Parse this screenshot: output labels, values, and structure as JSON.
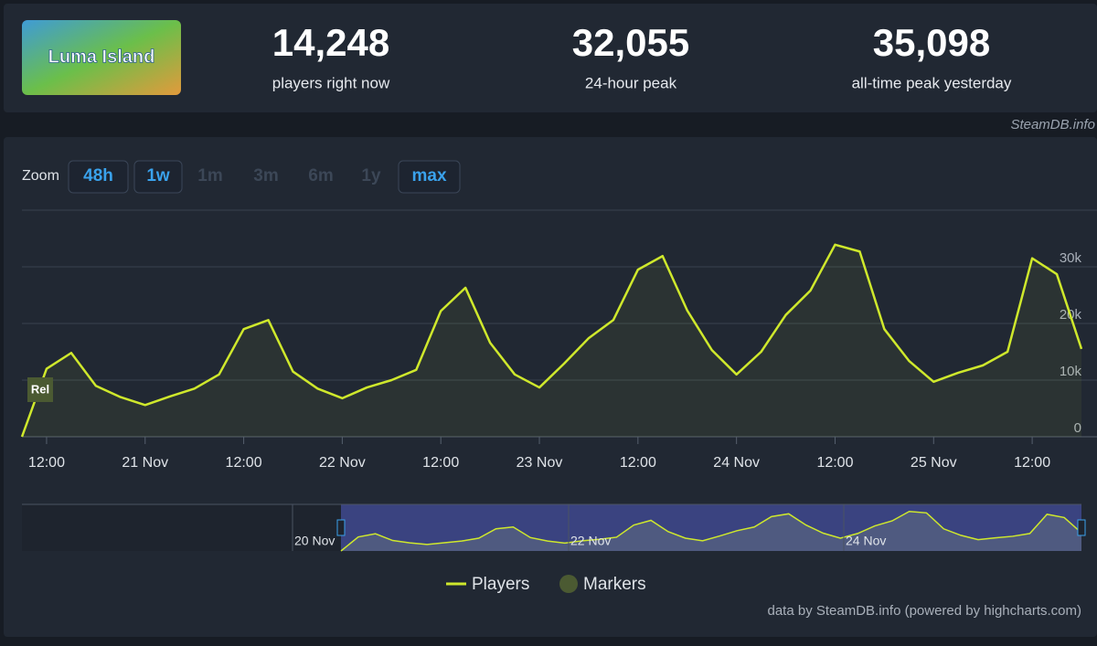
{
  "header": {
    "logo": "Luma Island",
    "stats": [
      {
        "value": "14,248",
        "label": "players right now"
      },
      {
        "value": "32,055",
        "label": "24-hour peak"
      },
      {
        "value": "35,098",
        "label": "all-time peak yesterday"
      }
    ],
    "credit": "SteamDB.info"
  },
  "zoom": {
    "label": "Zoom",
    "buttons": [
      {
        "label": "48h",
        "enabled": true
      },
      {
        "label": "1w",
        "enabled": true
      },
      {
        "label": "1m",
        "enabled": false
      },
      {
        "label": "3m",
        "enabled": false
      },
      {
        "label": "6m",
        "enabled": false
      },
      {
        "label": "1y",
        "enabled": false
      },
      {
        "label": "max",
        "enabled": true
      }
    ]
  },
  "chart_data": {
    "type": "line",
    "categories": [
      null,
      "12:00",
      null,
      null,
      null,
      "21 Nov",
      null,
      null,
      null,
      "12:00",
      null,
      null,
      null,
      "22 Nov",
      null,
      null,
      null,
      "12:00",
      null,
      null,
      null,
      "23 Nov",
      null,
      null,
      null,
      "12:00",
      null,
      null,
      null,
      "24 Nov",
      null,
      null,
      null,
      "12:00",
      null,
      null,
      null,
      "25 Nov",
      null,
      null,
      null,
      "12:00",
      null,
      null
    ],
    "series": [
      {
        "name": "Players",
        "color": "#cfe82c",
        "values": [
          0,
          12000,
          14800,
          9000,
          7000,
          5600,
          7100,
          8500,
          11000,
          19000,
          20600,
          11500,
          8500,
          6800,
          8700,
          10000,
          11800,
          22200,
          26300,
          16600,
          11000,
          8700,
          12900,
          17400,
          20600,
          29500,
          31900,
          22300,
          15300,
          11000,
          15000,
          21500,
          25800,
          33900,
          32700,
          19000,
          13400,
          9700,
          11300,
          12600,
          15000,
          31500,
          28700,
          15500
        ]
      }
    ],
    "markers": {
      "name": "Markers",
      "color": "#4b5a32",
      "items": [
        "Rel"
      ]
    },
    "ylim": [
      0,
      40000
    ],
    "yticks": [
      0,
      {
        "value": 10000,
        "label": "10k"
      },
      {
        "value": 20000,
        "label": "20k"
      },
      {
        "value": 30000,
        "label": "30k"
      }
    ],
    "grid": true,
    "navigator": {
      "labels": [
        "20 Nov",
        "22 Nov",
        "24 Nov"
      ]
    },
    "credit": "data by SteamDB.info (powered by highcharts.com)"
  }
}
